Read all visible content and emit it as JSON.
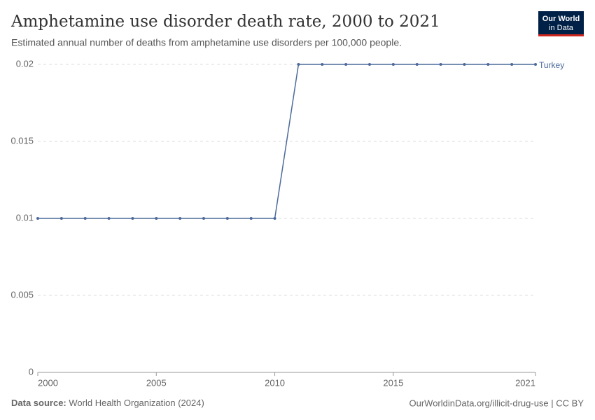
{
  "chart_data": {
    "type": "line",
    "title": "Amphetamine use disorder death rate, 2000 to 2021",
    "subtitle": "Estimated annual number of deaths from amphetamine use disorders per 100,000 people.",
    "x": [
      2000,
      2001,
      2002,
      2003,
      2004,
      2005,
      2006,
      2007,
      2008,
      2009,
      2010,
      2011,
      2012,
      2013,
      2014,
      2015,
      2016,
      2017,
      2018,
      2019,
      2020,
      2021
    ],
    "series": [
      {
        "name": "Turkey",
        "color": "#4c6a9c",
        "values": [
          0.01,
          0.01,
          0.01,
          0.01,
          0.01,
          0.01,
          0.01,
          0.01,
          0.01,
          0.01,
          0.01,
          0.02,
          0.02,
          0.02,
          0.02,
          0.02,
          0.02,
          0.02,
          0.02,
          0.02,
          0.02,
          0.02
        ]
      }
    ],
    "xlim": [
      2000,
      2021
    ],
    "xticks": [
      2000,
      2005,
      2010,
      2015,
      2021
    ],
    "ylim": [
      0,
      0.02
    ],
    "yticks": [
      0,
      0.005,
      0.01,
      0.015,
      0.02
    ],
    "grid": true,
    "source_label": "Data source:",
    "source": "World Health Organization (2024)",
    "url": "OurWorldinData.org/illicit-drug-use | CC BY",
    "logo": [
      "Our World",
      "in Data"
    ]
  }
}
